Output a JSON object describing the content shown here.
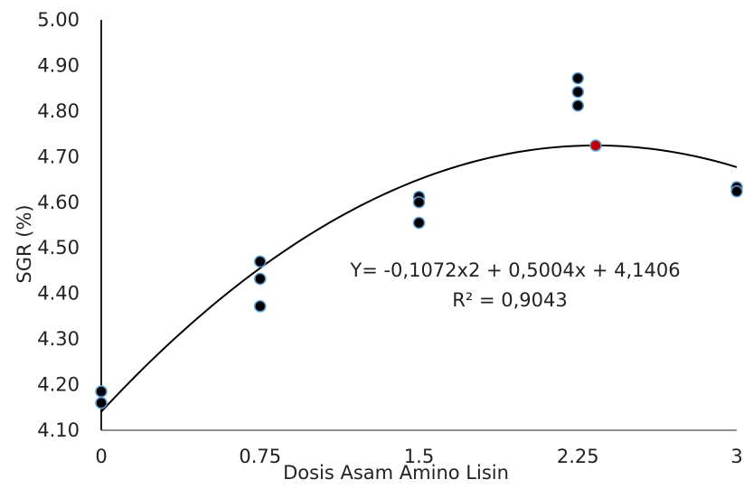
{
  "chart_data": {
    "type": "scatter",
    "xlabel": "Dosis Asam Amino Lisin",
    "ylabel": "SGR (%)",
    "x_tick_labels": [
      "0",
      "0.75",
      "1.5",
      "2.25",
      "3"
    ],
    "x_tick_values": [
      0,
      0.75,
      1.5,
      2.25,
      3
    ],
    "y_tick_labels": [
      "4.10",
      "4.20",
      "4.30",
      "4.40",
      "4.50",
      "4.60",
      "4.70",
      "4.80",
      "4.90",
      "5.00"
    ],
    "xlim": [
      0,
      3
    ],
    "ylim": [
      4.1,
      5.0
    ],
    "grid": false,
    "legend": "none",
    "series": [
      {
        "points": [
          {
            "x": 0,
            "y": 4.185
          },
          {
            "x": 0,
            "y": 4.16
          },
          {
            "x": 0.75,
            "y": 4.47
          },
          {
            "x": 0.75,
            "y": 4.432
          },
          {
            "x": 0.75,
            "y": 4.372
          },
          {
            "x": 1.5,
            "y": 4.612
          },
          {
            "x": 1.5,
            "y": 4.6
          },
          {
            "x": 1.5,
            "y": 4.555
          },
          {
            "x": 2.25,
            "y": 4.872
          },
          {
            "x": 2.25,
            "y": 4.842
          },
          {
            "x": 2.25,
            "y": 4.812
          },
          {
            "x": 3,
            "y": 4.633
          },
          {
            "x": 3,
            "y": 4.624
          }
        ],
        "marker_color": "#000000",
        "marker_edge": "#5b9bd5"
      }
    ],
    "optimum_point": {
      "x": 2.334,
      "y": 4.7245,
      "color": "#c00000"
    },
    "trendline": {
      "type": "polynomial",
      "a": -0.1072,
      "b": 0.5004,
      "c": 4.1406,
      "color": "#000000"
    },
    "annotations": {
      "equation": "Y= -0,1072x2 + 0,5004x + 4,1406",
      "r_squared": "R² = 0,9043"
    }
  }
}
